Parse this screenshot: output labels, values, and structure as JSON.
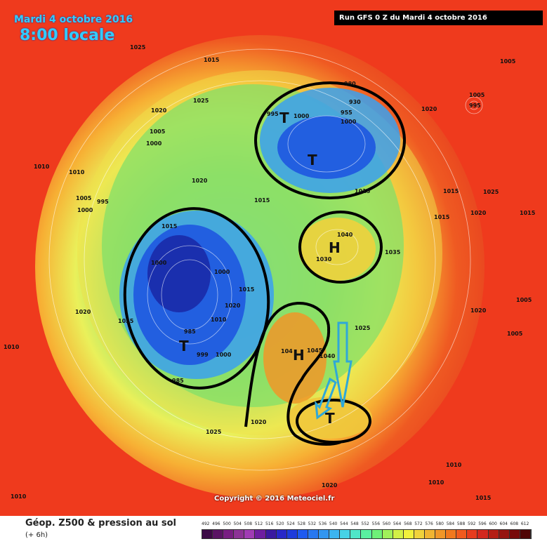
{
  "header": {
    "date": "Mardi 4 octobre 2016",
    "hour": "8:00 locale",
    "run": "Run GFS 0 Z du Mardi 4 octobre 2016"
  },
  "footer": {
    "product": "Géop. Z500 & pression au sol",
    "step": "(+ 6h)",
    "copyright": "Copyright © 2016 Meteociel.fr"
  },
  "legend": {
    "values": [
      "492",
      "496",
      "500",
      "504",
      "508",
      "512",
      "516",
      "520",
      "524",
      "528",
      "532",
      "536",
      "540",
      "544",
      "548",
      "552",
      "556",
      "560",
      "564",
      "568",
      "572",
      "576",
      "580",
      "584",
      "588",
      "592",
      "596",
      "600",
      "604",
      "608",
      "612"
    ],
    "colors": [
      "#3c0a46",
      "#5a1464",
      "#781e82",
      "#8c3296",
      "#a03cb4",
      "#6e1ea0",
      "#3a1aa0",
      "#2828c8",
      "#1e3cdc",
      "#1e5af0",
      "#2878f0",
      "#3296f0",
      "#3cb4f0",
      "#46d2e6",
      "#50e6c8",
      "#5af0a0",
      "#6ef078",
      "#a0f05a",
      "#d2f046",
      "#f0f03c",
      "#f0d23c",
      "#f0b432",
      "#f09628",
      "#f0781e",
      "#f05a1e",
      "#e63c1e",
      "#d2281e",
      "#b41e14",
      "#961410",
      "#780a0a",
      "#500505"
    ]
  },
  "map": {
    "pressure_labels": [
      "1025",
      "1015",
      "1005",
      "1005",
      "995",
      "995",
      "995",
      "1000",
      "980",
      "930",
      "955",
      "1000",
      "1000",
      "1020",
      "1020",
      "1025",
      "1005",
      "1000",
      "1010",
      "1010",
      "1005",
      "995",
      "1000",
      "1020",
      "1015",
      "1015",
      "1025",
      "1020",
      "1015",
      "1015",
      "1040",
      "1035",
      "1030",
      "1000",
      "1000",
      "1015",
      "1020",
      "1025",
      "1010",
      "1010",
      "1020",
      "1005",
      "1005",
      "985",
      "999",
      "1000",
      "985",
      "1045",
      "1040",
      "1045",
      "1025",
      "1020",
      "1020",
      "1025",
      "1010",
      "1010",
      "1010",
      "1020",
      "1015",
      "1010"
    ],
    "symbols": [
      "T",
      "T",
      "H",
      "T",
      "H",
      "T"
    ],
    "colors": {
      "warm": "#ef3a1d",
      "mid": "#f7d038",
      "green": "#5ed860",
      "cyan": "#3cc4e8",
      "blue": "#1e4fdc",
      "deep": "#1a1aa8"
    }
  }
}
